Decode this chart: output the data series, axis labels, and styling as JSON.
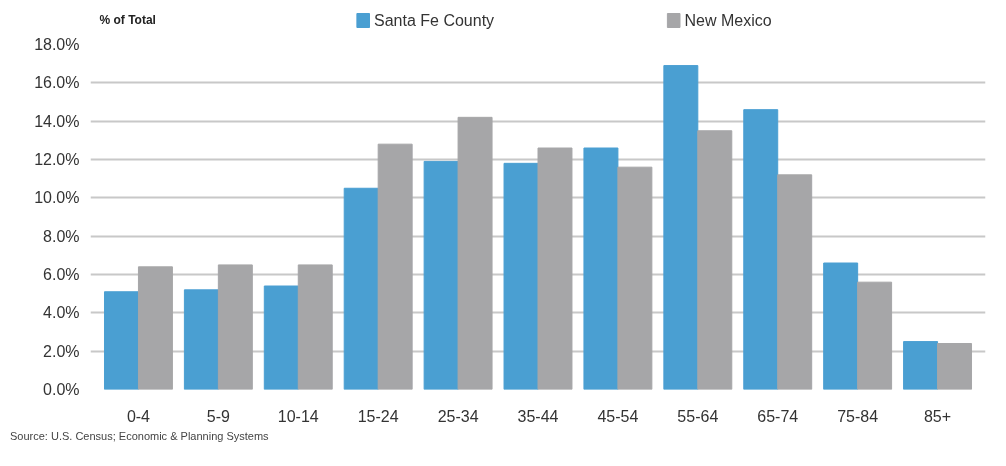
{
  "chart_data": {
    "type": "bar",
    "ylabel": "% of Total",
    "categories": [
      "0-4",
      "5-9",
      "10-14",
      "15-24",
      "25-34",
      "35-44",
      "45-54",
      "55-64",
      "65-74",
      "75-84",
      "85+"
    ],
    "series": [
      {
        "name": "Santa Fe County",
        "color": "#4a9fd2",
        "values": [
          5.1,
          5.2,
          5.4,
          10.5,
          11.9,
          11.8,
          12.6,
          16.9,
          14.6,
          6.6,
          2.5
        ]
      },
      {
        "name": "New Mexico",
        "color": "#a6a6a8",
        "values": [
          6.4,
          6.5,
          6.5,
          12.8,
          14.2,
          12.6,
          11.6,
          13.5,
          11.2,
          5.6,
          2.4
        ]
      }
    ],
    "ylim": [
      0,
      18
    ],
    "yticks": [
      {
        "value": 0,
        "label": "0.0%"
      },
      {
        "value": 2,
        "label": "2.0%"
      },
      {
        "value": 4,
        "label": "4.0%"
      },
      {
        "value": 6,
        "label": "6.0%"
      },
      {
        "value": 8,
        "label": "8.0%"
      },
      {
        "value": 10,
        "label": "10.0%"
      },
      {
        "value": 12,
        "label": "12.0%"
      },
      {
        "value": 14,
        "label": "14.0%"
      },
      {
        "value": 16,
        "label": "16.0%"
      },
      {
        "value": 18,
        "label": "18.0%"
      }
    ],
    "grid": "y",
    "legend": "top",
    "annotations": [
      "Source: U.S. Census; Economic & Planning Systems"
    ]
  }
}
